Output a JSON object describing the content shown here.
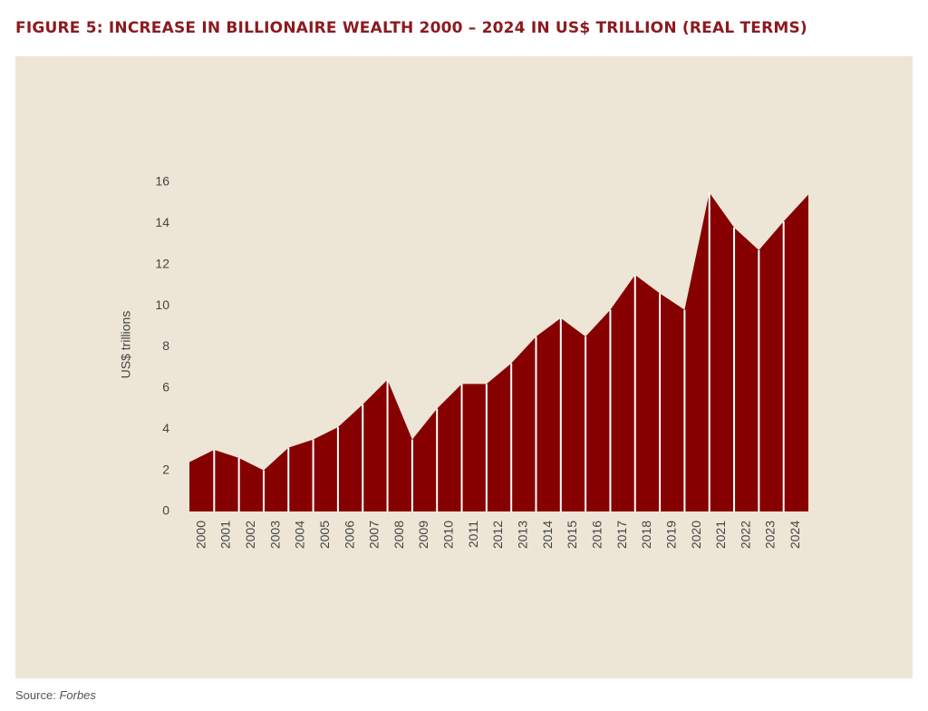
{
  "chart_data": {
    "type": "area",
    "title": "FIGURE 5: INCREASE IN BILLIONAIRE WEALTH 2000 – 2024 IN US$ TRILLION (REAL TERMS)",
    "y_label": "US$ trillions",
    "categories": [
      "2000",
      "2001",
      "2002",
      "2003",
      "2004",
      "2005",
      "2006",
      "2007",
      "2008",
      "2009",
      "2010",
      "2011",
      "2012",
      "2013",
      "2014",
      "2015",
      "2016",
      "2017",
      "2018",
      "2019",
      "2020",
      "2021",
      "2022",
      "2023",
      "2024",
      null
    ],
    "series": [
      {
        "name": "Billionaire wealth",
        "color": "#870000",
        "values": [
          2.4,
          3.0,
          2.6,
          2.0,
          3.1,
          3.5,
          4.1,
          5.2,
          6.4,
          3.5,
          5.0,
          6.2,
          6.2,
          7.2,
          8.5,
          9.4,
          8.5,
          9.8,
          11.5,
          10.6,
          9.8,
          15.5,
          13.8,
          12.7,
          14.1,
          15.4
        ]
      }
    ],
    "ylim": [
      0,
      16
    ],
    "yticks": [
      0,
      2,
      4,
      6,
      8,
      10,
      12,
      14,
      16
    ],
    "grid": false,
    "source": {
      "label": "Source:",
      "name": "Forbes"
    }
  }
}
